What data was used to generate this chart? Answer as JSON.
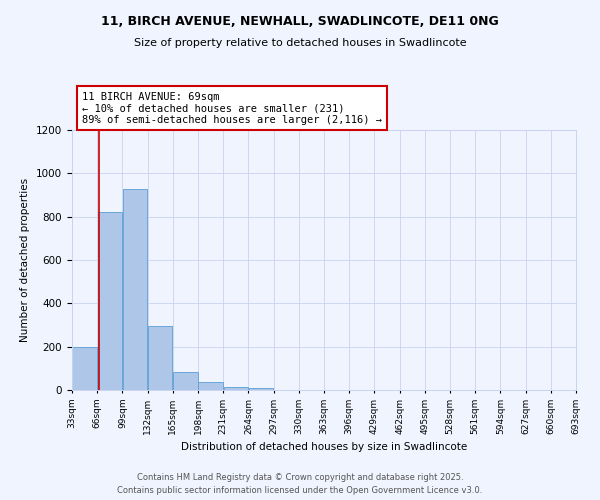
{
  "title_line1": "11, BIRCH AVENUE, NEWHALL, SWADLINCOTE, DE11 0NG",
  "title_line2": "Size of property relative to detached houses in Swadlincote",
  "xlabel": "Distribution of detached houses by size in Swadlincote",
  "ylabel": "Number of detached properties",
  "bin_edges": [
    33,
    66,
    99,
    132,
    165,
    198,
    231,
    264,
    297,
    330,
    363,
    396,
    429,
    462,
    495,
    528,
    561,
    594,
    627,
    660,
    693
  ],
  "bar_heights": [
    197,
    820,
    930,
    295,
    85,
    35,
    15,
    10,
    0,
    0,
    0,
    0,
    0,
    0,
    0,
    0,
    0,
    0,
    0,
    0
  ],
  "bar_color": "#aec6e8",
  "bar_edge_color": "#5a9fd4",
  "property_size": 69,
  "property_line_color": "#cc0000",
  "ylim": [
    0,
    1200
  ],
  "yticks": [
    0,
    200,
    400,
    600,
    800,
    1000,
    1200
  ],
  "annotation_title": "11 BIRCH AVENUE: 69sqm",
  "annotation_line1": "← 10% of detached houses are smaller (231)",
  "annotation_line2": "89% of semi-detached houses are larger (2,116) →",
  "annotation_box_color": "#ffffff",
  "annotation_box_edge": "#cc0000",
  "tick_labels": [
    "33sqm",
    "66sqm",
    "99sqm",
    "132sqm",
    "165sqm",
    "198sqm",
    "231sqm",
    "264sqm",
    "297sqm",
    "330sqm",
    "363sqm",
    "396sqm",
    "429sqm",
    "462sqm",
    "495sqm",
    "528sqm",
    "561sqm",
    "594sqm",
    "627sqm",
    "660sqm",
    "693sqm"
  ],
  "footer_line1": "Contains HM Land Registry data © Crown copyright and database right 2025.",
  "footer_line2": "Contains public sector information licensed under the Open Government Licence v3.0.",
  "background_color": "#f0f4ff",
  "grid_color": "#c8d4ef"
}
